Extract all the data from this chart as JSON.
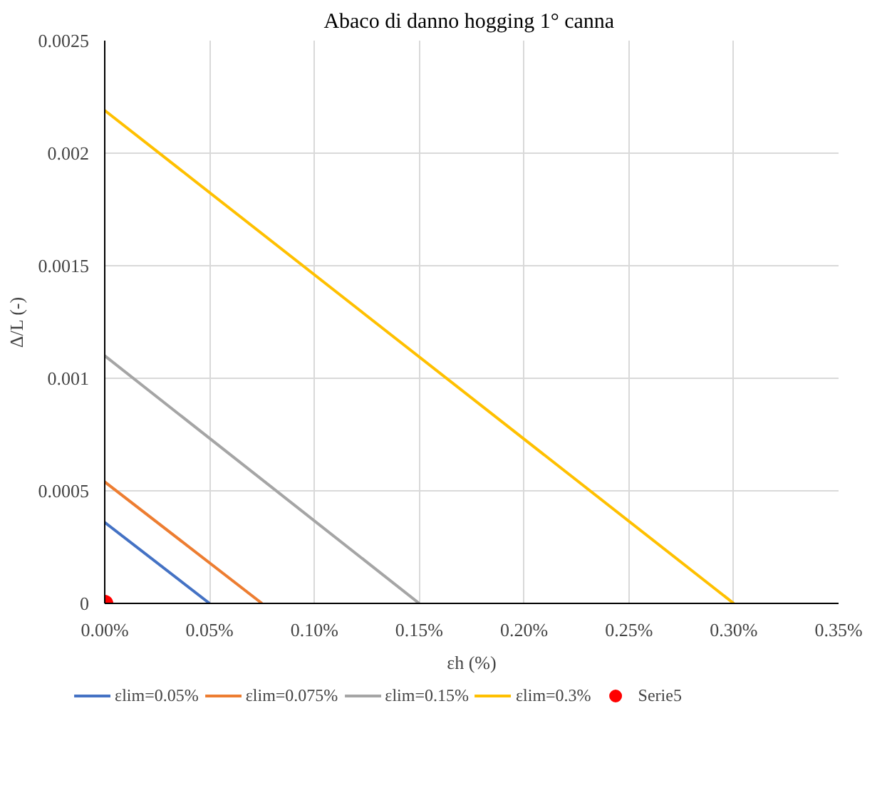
{
  "chart_data": {
    "type": "line",
    "title": "Abaco di danno hogging  1° canna",
    "xlabel": "εh (%)",
    "ylabel": "Δ/L (-)",
    "series": [
      {
        "name": "εlim=0.05%",
        "color": "#4472c4",
        "x": [
          0,
          0.05
        ],
        "values": [
          0.00036,
          0
        ]
      },
      {
        "name": "εlim=0.075%",
        "color": "#ed7d31",
        "x": [
          0,
          0.075
        ],
        "values": [
          0.00054,
          0
        ]
      },
      {
        "name": "εlim=0.15%",
        "color": "#a5a5a5",
        "x": [
          0,
          0.15
        ],
        "values": [
          0.0011,
          0
        ]
      },
      {
        "name": "εlim=0.3%",
        "color": "#ffc000",
        "x": [
          0,
          0.3
        ],
        "values": [
          0.00219,
          0
        ]
      },
      {
        "name": "Serie5",
        "color": "#ff0000",
        "type": "scatter",
        "marker": "circle",
        "x": [
          0
        ],
        "values": [
          0
        ]
      }
    ],
    "xlim": [
      0,
      0.35
    ],
    "ylim": [
      0,
      0.0025
    ],
    "xticks": [
      {
        "value": 0,
        "label": "0.00%"
      },
      {
        "value": 0.05,
        "label": "0.05%"
      },
      {
        "value": 0.1,
        "label": "0.10%"
      },
      {
        "value": 0.15,
        "label": "0.15%"
      },
      {
        "value": 0.2,
        "label": "0.20%"
      },
      {
        "value": 0.25,
        "label": "0.25%"
      },
      {
        "value": 0.3,
        "label": "0.30%"
      },
      {
        "value": 0.35,
        "label": "0.35%"
      }
    ],
    "yticks": [
      0,
      0.0005,
      0.001,
      0.0015,
      0.002,
      0.0025
    ],
    "grid": true,
    "legend": "bottom",
    "line_style": "solid"
  }
}
